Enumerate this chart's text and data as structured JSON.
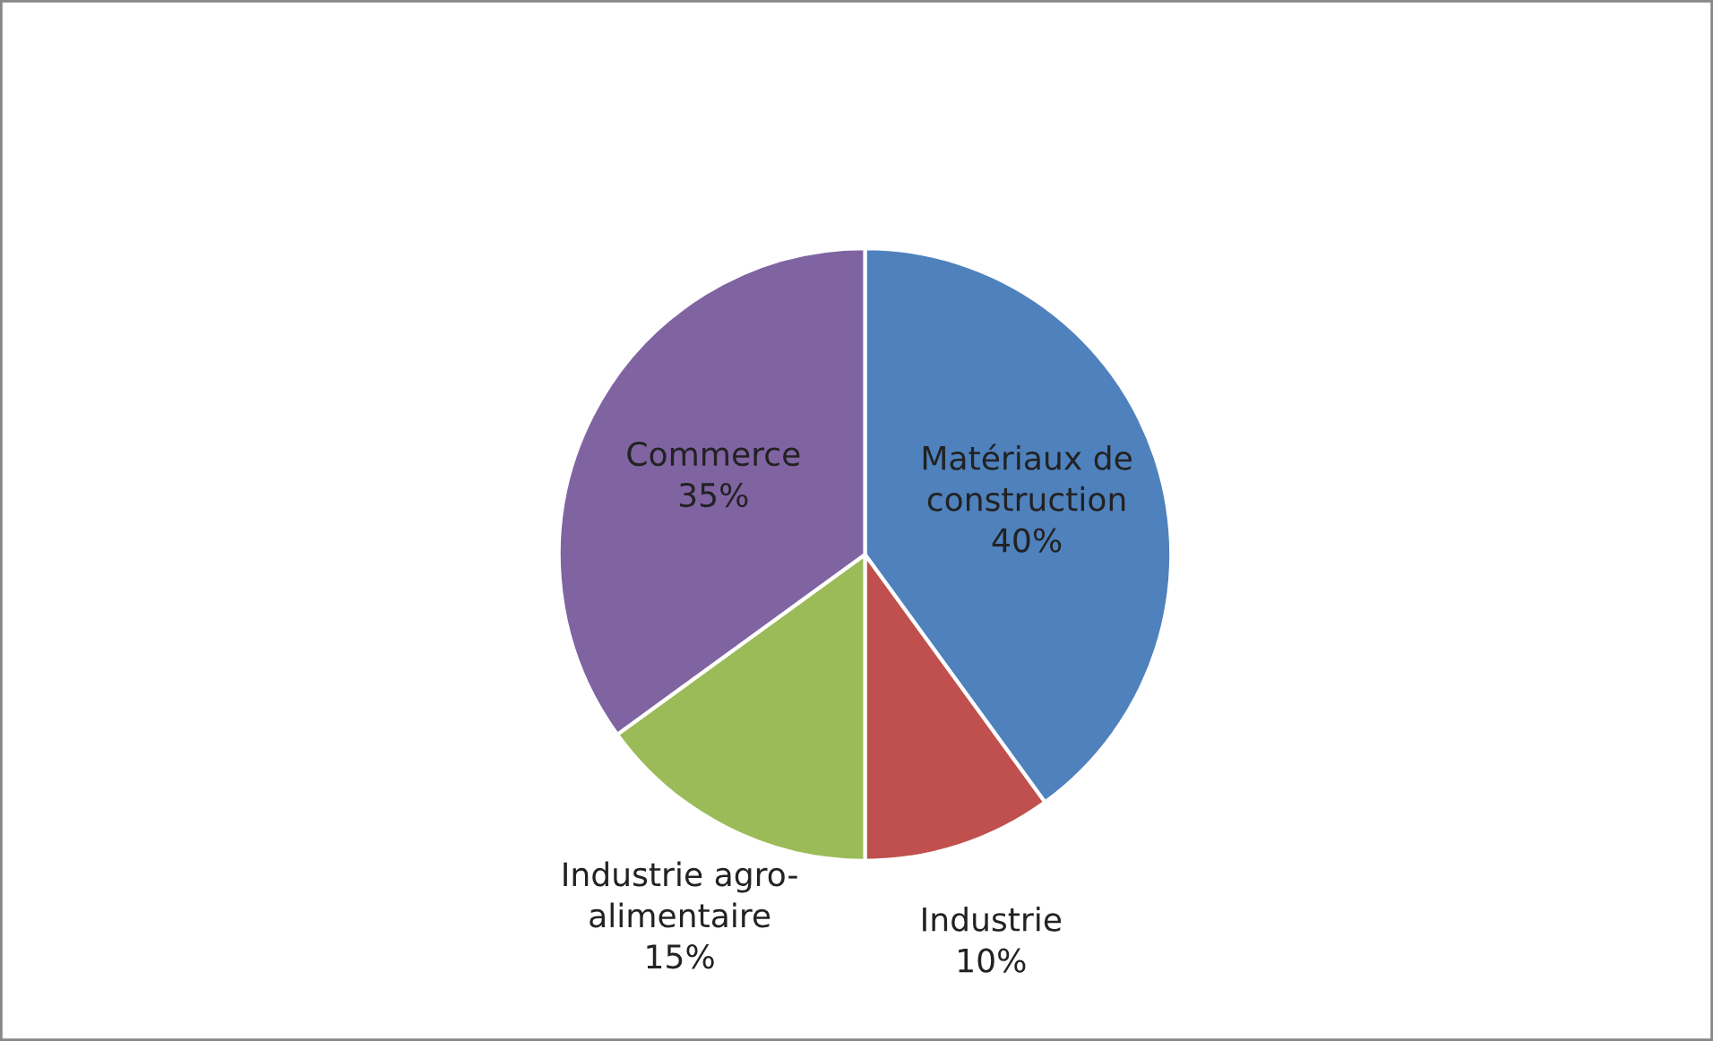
{
  "chart_data": {
    "type": "pie",
    "categories": [
      "Matériaux de construction",
      "Industrie",
      "Industrie agro-alimentaire",
      "Commerce"
    ],
    "values": [
      40,
      10,
      15,
      35
    ],
    "colors": [
      "#4f81bd",
      "#c0504d",
      "#9bbb59",
      "#8064a2"
    ],
    "value_labels": [
      "40%",
      "10%",
      "15%",
      "35%"
    ],
    "legend": false
  }
}
